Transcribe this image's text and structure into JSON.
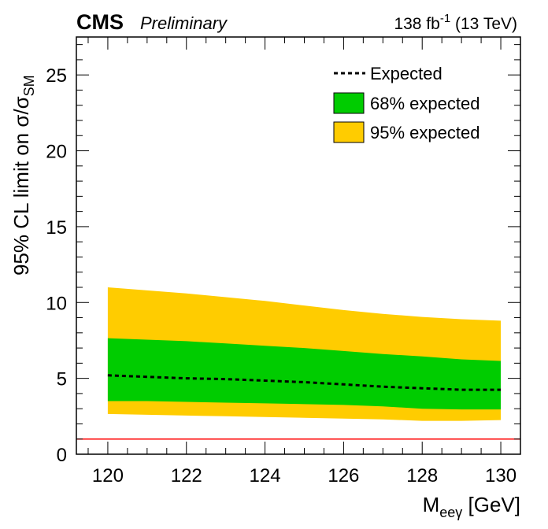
{
  "header": {
    "experiment": "CMS",
    "status": "Preliminary",
    "lumi": "138 fb",
    "lumi_exp": "-1",
    "energy": " (13 TeV)"
  },
  "chart_data": {
    "type": "area",
    "x": [
      120,
      121,
      122,
      123,
      124,
      125,
      126,
      127,
      128,
      129,
      130
    ],
    "expected": [
      5.2,
      5.1,
      5.0,
      4.95,
      4.85,
      4.75,
      4.6,
      4.45,
      4.35,
      4.25,
      4.25
    ],
    "band68_low": [
      3.5,
      3.5,
      3.45,
      3.4,
      3.35,
      3.3,
      3.25,
      3.15,
      3.0,
      2.95,
      2.95
    ],
    "band68_high": [
      7.65,
      7.55,
      7.45,
      7.3,
      7.15,
      7.0,
      6.8,
      6.6,
      6.45,
      6.25,
      6.15
    ],
    "band95_low": [
      2.65,
      2.6,
      2.55,
      2.5,
      2.45,
      2.4,
      2.35,
      2.3,
      2.2,
      2.2,
      2.25
    ],
    "band95_high": [
      11.0,
      10.8,
      10.6,
      10.35,
      10.1,
      9.8,
      9.5,
      9.25,
      9.05,
      8.9,
      8.8
    ],
    "reference_line": 1,
    "xlim": [
      119.2,
      130.5
    ],
    "ylim": [
      0,
      27.5
    ],
    "xticks": [
      "120",
      "122",
      "124",
      "126",
      "128",
      "130"
    ],
    "xtick_values": [
      120,
      122,
      124,
      126,
      128,
      130
    ],
    "yticks": [
      "0",
      "5",
      "10",
      "15",
      "20",
      "25"
    ],
    "ytick_values": [
      0,
      5,
      10,
      15,
      20,
      25
    ],
    "xlabel_main": "M",
    "xlabel_sub": "eeγ",
    "xlabel_unit": " [GeV]",
    "ylabel_main": "95% CL limit on σ/σ",
    "ylabel_sub": "SM",
    "legend": [
      {
        "label": "Expected",
        "style": "dashed-line",
        "color": "#000000"
      },
      {
        "label": "68% expected",
        "style": "box",
        "color": "#00cc00"
      },
      {
        "label": "95% expected",
        "style": "box",
        "color": "#ffcc00"
      }
    ],
    "legend_position": "top-right",
    "colors": {
      "band68": "#00cc00",
      "band95": "#ffcc00",
      "reference": "#ff0000"
    }
  }
}
